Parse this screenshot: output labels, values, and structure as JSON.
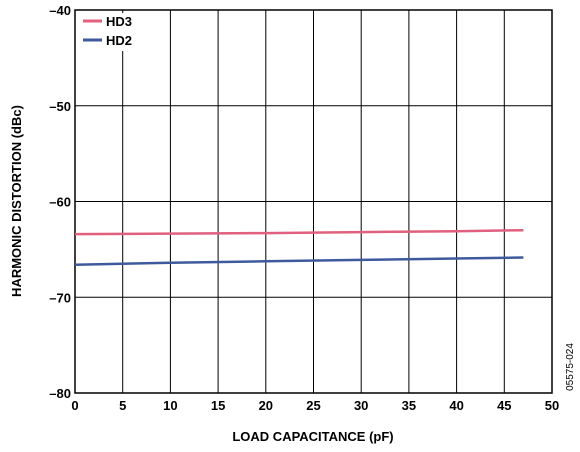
{
  "chart_data": {
    "type": "line",
    "xlabel": "LOAD CAPACITANCE (pF)",
    "ylabel": "HARMONIC DISTORTION (dBc)",
    "xlim": [
      0,
      50
    ],
    "ylim": [
      -80,
      -40
    ],
    "x_ticks": [
      "0",
      "5",
      "10",
      "15",
      "20",
      "25",
      "30",
      "35",
      "40",
      "45",
      "50"
    ],
    "y_ticks": [
      "–40",
      "–50",
      "–60",
      "–70",
      "–80"
    ],
    "grid": true,
    "legend_position": "top-left",
    "series": [
      {
        "name": "HD3",
        "color": "#e0607e",
        "x": [
          0,
          10,
          20,
          30,
          40,
          47
        ],
        "y": [
          -63.4,
          -63.35,
          -63.3,
          -63.2,
          -63.1,
          -63.0
        ]
      },
      {
        "name": "HD2",
        "color": "#3f5a9c",
        "x": [
          0,
          10,
          20,
          30,
          40,
          47
        ],
        "y": [
          -66.6,
          -66.4,
          -66.25,
          -66.1,
          -65.95,
          -65.85
        ]
      }
    ]
  },
  "figure_code": "05575-024"
}
